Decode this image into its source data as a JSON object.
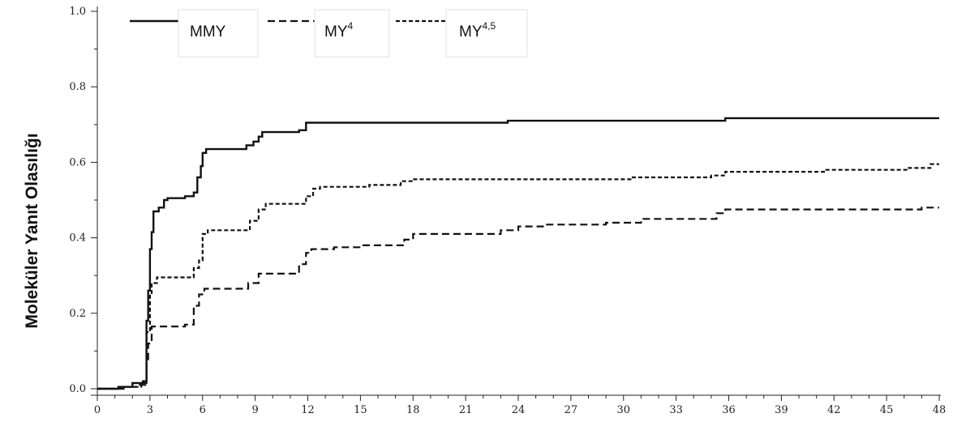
{
  "chart_data": {
    "type": "line",
    "title": "",
    "xlabel": "",
    "ylabel": "Moleküler Yanıt Olasılığı",
    "xlim": [
      0,
      48
    ],
    "ylim": [
      0,
      1.0
    ],
    "x_ticks": [
      0,
      3,
      6,
      9,
      12,
      15,
      18,
      21,
      24,
      27,
      30,
      33,
      36,
      39,
      42,
      45,
      48
    ],
    "y_ticks": [
      0.0,
      0.2,
      0.4,
      0.6,
      0.8,
      1.0
    ],
    "y_tick_labels": [
      "0.0",
      "0.2",
      "0.4",
      "0.6",
      "0.8",
      "1.0"
    ],
    "grid": false,
    "legend_position": "top-left",
    "step": true,
    "series": [
      {
        "name": "MMY",
        "legend_main": "MMY",
        "legend_sup": "",
        "style": "solid",
        "points": [
          [
            0,
            0.0
          ],
          [
            1.2,
            0.0
          ],
          [
            1.2,
            0.005
          ],
          [
            2.0,
            0.005
          ],
          [
            2.0,
            0.015
          ],
          [
            2.6,
            0.015
          ],
          [
            2.6,
            0.02
          ],
          [
            2.8,
            0.02
          ],
          [
            2.8,
            0.18
          ],
          [
            2.9,
            0.18
          ],
          [
            2.9,
            0.26
          ],
          [
            3.0,
            0.26
          ],
          [
            3.0,
            0.37
          ],
          [
            3.1,
            0.37
          ],
          [
            3.1,
            0.415
          ],
          [
            3.2,
            0.415
          ],
          [
            3.2,
            0.47
          ],
          [
            3.5,
            0.47
          ],
          [
            3.5,
            0.48
          ],
          [
            3.8,
            0.48
          ],
          [
            3.8,
            0.5
          ],
          [
            4.0,
            0.5
          ],
          [
            4.0,
            0.505
          ],
          [
            5.0,
            0.505
          ],
          [
            5.0,
            0.51
          ],
          [
            5.5,
            0.51
          ],
          [
            5.5,
            0.52
          ],
          [
            5.7,
            0.52
          ],
          [
            5.7,
            0.56
          ],
          [
            5.9,
            0.56
          ],
          [
            5.9,
            0.59
          ],
          [
            6.0,
            0.59
          ],
          [
            6.0,
            0.625
          ],
          [
            6.2,
            0.625
          ],
          [
            6.2,
            0.635
          ],
          [
            8.5,
            0.635
          ],
          [
            8.5,
            0.645
          ],
          [
            8.9,
            0.645
          ],
          [
            8.9,
            0.655
          ],
          [
            9.2,
            0.655
          ],
          [
            9.2,
            0.668
          ],
          [
            9.4,
            0.668
          ],
          [
            9.4,
            0.68
          ],
          [
            11.5,
            0.68
          ],
          [
            11.5,
            0.685
          ],
          [
            11.9,
            0.685
          ],
          [
            11.9,
            0.705
          ],
          [
            23.4,
            0.705
          ],
          [
            23.4,
            0.71
          ],
          [
            35.8,
            0.71
          ],
          [
            35.8,
            0.717
          ],
          [
            48,
            0.717
          ]
        ]
      },
      {
        "name": "MY4",
        "legend_main": "MY",
        "legend_sup": "4",
        "style": "dashed",
        "points": [
          [
            0,
            0.0
          ],
          [
            1.5,
            0.0
          ],
          [
            1.5,
            0.005
          ],
          [
            2.3,
            0.005
          ],
          [
            2.3,
            0.01
          ],
          [
            2.8,
            0.01
          ],
          [
            2.8,
            0.07
          ],
          [
            2.9,
            0.07
          ],
          [
            2.9,
            0.12
          ],
          [
            3.1,
            0.12
          ],
          [
            3.1,
            0.165
          ],
          [
            5.0,
            0.165
          ],
          [
            5.0,
            0.17
          ],
          [
            5.5,
            0.17
          ],
          [
            5.5,
            0.22
          ],
          [
            5.8,
            0.22
          ],
          [
            5.8,
            0.25
          ],
          [
            6.1,
            0.25
          ],
          [
            6.1,
            0.265
          ],
          [
            8.6,
            0.265
          ],
          [
            8.6,
            0.28
          ],
          [
            9.2,
            0.28
          ],
          [
            9.2,
            0.305
          ],
          [
            11.5,
            0.305
          ],
          [
            11.5,
            0.33
          ],
          [
            11.9,
            0.33
          ],
          [
            11.9,
            0.36
          ],
          [
            12.2,
            0.36
          ],
          [
            12.2,
            0.37
          ],
          [
            13.5,
            0.37
          ],
          [
            13.5,
            0.375
          ],
          [
            15.0,
            0.375
          ],
          [
            15.0,
            0.38
          ],
          [
            17.5,
            0.38
          ],
          [
            17.5,
            0.395
          ],
          [
            18.0,
            0.395
          ],
          [
            18.0,
            0.41
          ],
          [
            23.0,
            0.41
          ],
          [
            23.0,
            0.42
          ],
          [
            24.0,
            0.42
          ],
          [
            24.0,
            0.43
          ],
          [
            25.5,
            0.43
          ],
          [
            25.5,
            0.435
          ],
          [
            29.0,
            0.435
          ],
          [
            29.0,
            0.44
          ],
          [
            31.0,
            0.44
          ],
          [
            31.0,
            0.45
          ],
          [
            35.3,
            0.45
          ],
          [
            35.3,
            0.465
          ],
          [
            35.8,
            0.465
          ],
          [
            35.8,
            0.475
          ],
          [
            47.0,
            0.475
          ],
          [
            47.0,
            0.48
          ],
          [
            48,
            0.48
          ]
        ]
      },
      {
        "name": "MY4,5",
        "legend_main": "MY",
        "legend_sup": "4,5",
        "style": "dotted",
        "points": [
          [
            0,
            0.0
          ],
          [
            1.5,
            0.0
          ],
          [
            1.5,
            0.005
          ],
          [
            2.5,
            0.005
          ],
          [
            2.5,
            0.015
          ],
          [
            2.8,
            0.015
          ],
          [
            2.8,
            0.15
          ],
          [
            3.0,
            0.15
          ],
          [
            3.0,
            0.25
          ],
          [
            3.1,
            0.25
          ],
          [
            3.1,
            0.28
          ],
          [
            3.4,
            0.28
          ],
          [
            3.4,
            0.295
          ],
          [
            5.5,
            0.295
          ],
          [
            5.5,
            0.32
          ],
          [
            5.8,
            0.32
          ],
          [
            5.8,
            0.34
          ],
          [
            6.0,
            0.34
          ],
          [
            6.0,
            0.41
          ],
          [
            6.3,
            0.41
          ],
          [
            6.3,
            0.42
          ],
          [
            8.7,
            0.42
          ],
          [
            8.7,
            0.445
          ],
          [
            9.2,
            0.445
          ],
          [
            9.2,
            0.475
          ],
          [
            9.6,
            0.475
          ],
          [
            9.6,
            0.49
          ],
          [
            11.9,
            0.49
          ],
          [
            11.9,
            0.51
          ],
          [
            12.3,
            0.51
          ],
          [
            12.3,
            0.53
          ],
          [
            12.7,
            0.53
          ],
          [
            12.7,
            0.535
          ],
          [
            15.5,
            0.535
          ],
          [
            15.5,
            0.54
          ],
          [
            17.3,
            0.54
          ],
          [
            17.3,
            0.55
          ],
          [
            18.0,
            0.55
          ],
          [
            18.0,
            0.555
          ],
          [
            30.4,
            0.555
          ],
          [
            30.4,
            0.56
          ],
          [
            35.0,
            0.56
          ],
          [
            35.0,
            0.565
          ],
          [
            35.8,
            0.565
          ],
          [
            35.8,
            0.575
          ],
          [
            41.5,
            0.575
          ],
          [
            41.5,
            0.58
          ],
          [
            46.2,
            0.58
          ],
          [
            46.2,
            0.585
          ],
          [
            47.5,
            0.585
          ],
          [
            47.5,
            0.595
          ],
          [
            48,
            0.595
          ]
        ]
      }
    ]
  },
  "colors": {
    "line": "#111111",
    "axis": "#222222",
    "legend_box_border": "#e2e2e2"
  }
}
